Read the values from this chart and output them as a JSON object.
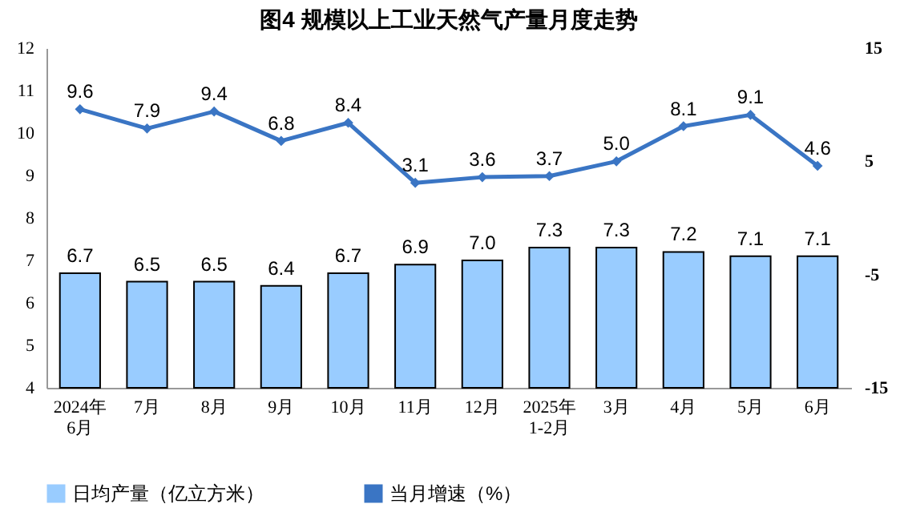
{
  "chart_data": {
    "type": "bar",
    "title": "图4  规模以上工业天然气产量月度走势",
    "categories": [
      "2024年\n6月",
      "7月",
      "8月",
      "9月",
      "10月",
      "11月",
      "12月",
      "2025年\n1-2月",
      "3月",
      "4月",
      "5月",
      "6月"
    ],
    "series": [
      {
        "name": "日均产量（亿立方米）",
        "color": "#99ccff",
        "values": [
          6.7,
          6.5,
          6.5,
          6.4,
          6.7,
          6.9,
          7.0,
          7.3,
          7.3,
          7.2,
          7.1,
          7.1
        ],
        "value_labels": [
          "6.7",
          "6.5",
          "6.5",
          "6.4",
          "6.7",
          "6.9",
          "7.0",
          "7.3",
          "7.3",
          "7.2",
          "7.1",
          "7.1"
        ]
      },
      {
        "name": "当月增速（%）",
        "type": "line",
        "axis": "y2",
        "color": "#3a75c4",
        "values": [
          9.6,
          7.9,
          9.4,
          6.8,
          8.4,
          3.1,
          3.6,
          3.7,
          5.0,
          8.1,
          9.1,
          4.6
        ],
        "value_labels": [
          "9.6",
          "7.9",
          "9.4",
          "6.8",
          "8.4",
          "3.1",
          "3.6",
          "3.7",
          "5.0",
          "8.1",
          "9.1",
          "4.6"
        ]
      }
    ],
    "ylim": [
      4,
      12
    ],
    "yticks": [
      4,
      5,
      6,
      7,
      8,
      9,
      10,
      11,
      12
    ],
    "y2lim": [
      -15,
      15
    ],
    "y2ticks": [
      -15,
      -5,
      5,
      15
    ],
    "legend": "bottom",
    "marker": "diamond",
    "line_style": "solid"
  }
}
